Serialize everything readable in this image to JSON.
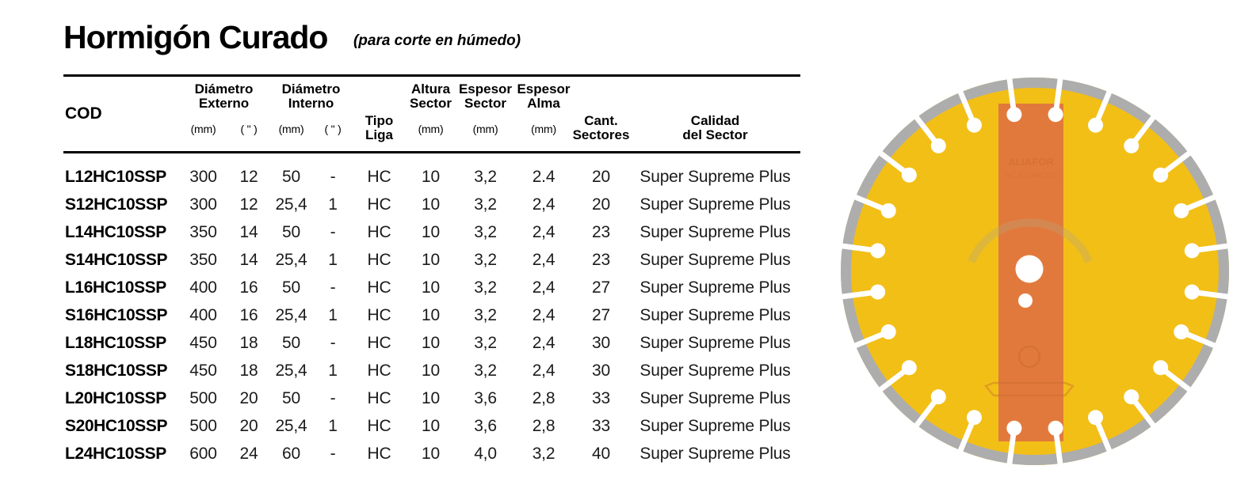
{
  "header": {
    "title": "Hormigón Curado",
    "subtitle": "(para corte en húmedo)"
  },
  "table": {
    "headers": {
      "cod": "COD",
      "diam_externo": {
        "line1": "Diámetro",
        "line2": "Externo",
        "unit_mm": "(mm)",
        "unit_in": "( \" )"
      },
      "diam_interno": {
        "line1": "Diámetro",
        "line2": "Interno",
        "unit_mm": "(mm)",
        "unit_in": "( \" )"
      },
      "tipo_liga": {
        "line1": "Tipo",
        "line2": "Liga"
      },
      "altura_sector": {
        "line1": "Altura",
        "line2": "Sector",
        "unit": "(mm)"
      },
      "espesor_sector": {
        "line1": "Espesor",
        "line2": "Sector",
        "unit": "(mm)"
      },
      "espesor_alma": {
        "line1": "Espesor",
        "line2": "Alma",
        "unit": "(mm)"
      },
      "cant_sectores": {
        "line1": "Cant.",
        "line2": "Sectores"
      },
      "calidad": {
        "line1": "Calidad",
        "line2": "del Sector"
      }
    },
    "rows": [
      [
        "L12HC10SSP",
        "300",
        "12",
        "50",
        "-",
        "HC",
        "10",
        "3,2",
        "2.4",
        "20",
        "Super Supreme Plus"
      ],
      [
        "S12HC10SSP",
        "300",
        "12",
        "25,4",
        "1",
        "HC",
        "10",
        "3,2",
        "2,4",
        "20",
        "Super Supreme Plus"
      ],
      [
        "L14HC10SSP",
        "350",
        "14",
        "50",
        "-",
        "HC",
        "10",
        "3,2",
        "2,4",
        "23",
        "Super Supreme Plus"
      ],
      [
        "S14HC10SSP",
        "350",
        "14",
        "25,4",
        "1",
        "HC",
        "10",
        "3,2",
        "2,4",
        "23",
        "Super Supreme Plus"
      ],
      [
        "L16HC10SSP",
        "400",
        "16",
        "50",
        "-",
        "HC",
        "10",
        "3,2",
        "2,4",
        "27",
        "Super Supreme Plus"
      ],
      [
        "S16HC10SSP",
        "400",
        "16",
        "25,4",
        "1",
        "HC",
        "10",
        "3,2",
        "2,4",
        "27",
        "Super Supreme Plus"
      ],
      [
        "L18HC10SSP",
        "450",
        "18",
        "50",
        "-",
        "HC",
        "10",
        "3,2",
        "2,4",
        "30",
        "Super Supreme Plus"
      ],
      [
        "S18HC10SSP",
        "450",
        "18",
        "25,4",
        "1",
        "HC",
        "10",
        "3,2",
        "2,4",
        "30",
        "Super Supreme Plus"
      ],
      [
        "L20HC10SSP",
        "500",
        "20",
        "50",
        "-",
        "HC",
        "10",
        "3,6",
        "2,8",
        "33",
        "Super Supreme Plus"
      ],
      [
        "S20HC10SSP",
        "500",
        "20",
        "25,4",
        "1",
        "HC",
        "10",
        "3,6",
        "2,8",
        "33",
        "Super Supreme Plus"
      ],
      [
        "L24HC10SSP",
        "600",
        "24",
        "60",
        "-",
        "HC",
        "10",
        "4,0",
        "3,2",
        "40",
        "Super Supreme Plus"
      ]
    ]
  },
  "disc": {
    "segments": 24,
    "watermark_line1": "ALIAFOR",
    "watermark_line2": "HC ADVANCED",
    "colors": {
      "body": "#F2BF17",
      "band": "#E2793C",
      "rim": "#ADADAD",
      "hole": "#FFFFFF",
      "watermark": "#C8682D"
    }
  }
}
